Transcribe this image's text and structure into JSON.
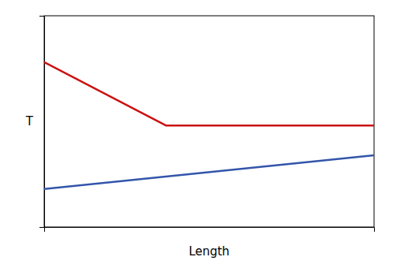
{
  "chart_data": {
    "type": "line",
    "xlabel": "Length",
    "ylabel": "T",
    "series": [
      {
        "color": "#cc1111",
        "x": [
          0.0,
          0.37,
          1.0
        ],
        "values": [
          0.78,
          0.48,
          0.48
        ]
      },
      {
        "color": "#3355aa",
        "x": [
          0.0,
          1.0
        ],
        "values": [
          0.18,
          0.34
        ]
      }
    ],
    "xlim": [
      0.0,
      1.0
    ],
    "ylim": [
      0.0,
      1.0
    ],
    "tick_labels": false
  }
}
